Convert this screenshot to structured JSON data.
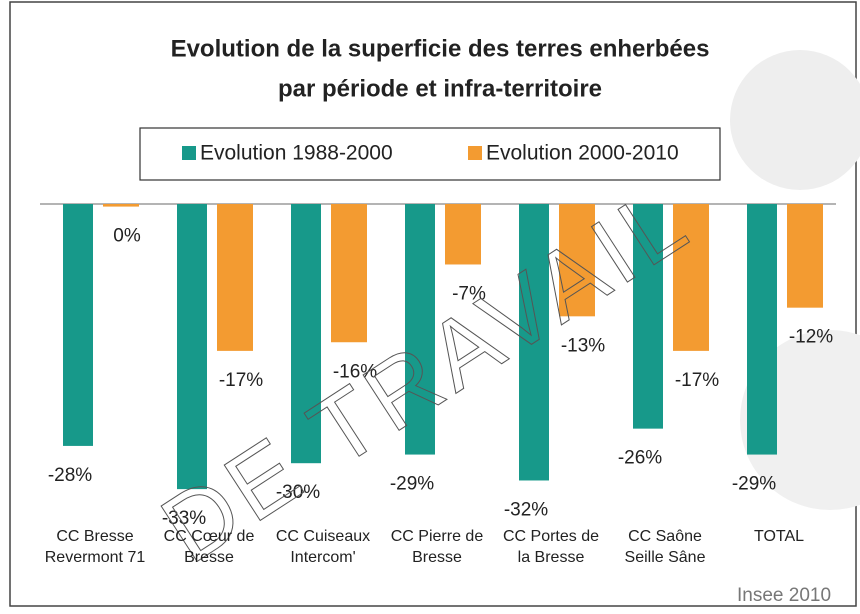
{
  "chart_data": {
    "type": "bar",
    "title": [
      "Evolution de la superficie des terres enherbées",
      "par période et infra-territoire"
    ],
    "categories": [
      "CC Bresse Revermont 71",
      "CC Cœur de Bresse",
      "CC Cuiseaux Intercom'",
      "CC Pierre de Bresse",
      "CC Portes de la Bresse",
      "CC Saône Seille Sâne",
      "TOTAL"
    ],
    "series": [
      {
        "name": "Evolution 1988-2000",
        "color": "#17998a",
        "values": [
          -28,
          -33,
          -30,
          -29,
          -32,
          -26,
          -29
        ],
        "value_labels": [
          "-28%",
          "-33%",
          "-30%",
          "-29%",
          "-32%",
          "-26%",
          "-29%"
        ]
      },
      {
        "name": "Evolution 2000-2010",
        "color": "#f39b31",
        "values": [
          -0.3,
          -17,
          -16,
          -7,
          -13,
          -17,
          -12
        ],
        "value_labels": [
          "0%",
          "-17%",
          "-16%",
          "-7%",
          "-13%",
          "-17%",
          "-12%"
        ]
      }
    ],
    "ylim": [
      -35,
      0
    ],
    "legend": "top",
    "source": "Insee 2010",
    "watermark": "DE TRAVAIL"
  }
}
